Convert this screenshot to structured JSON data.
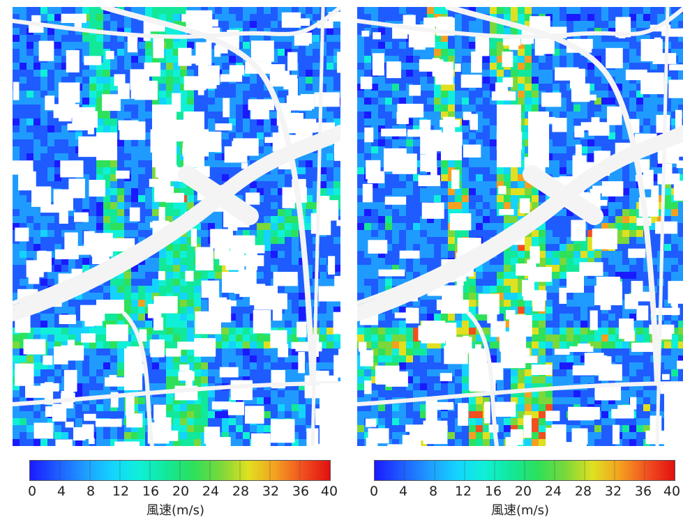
{
  "panels": [
    {
      "id": "left",
      "legend": {
        "ticks": [
          "0",
          "4",
          "8",
          "12",
          "16",
          "20",
          "24",
          "28",
          "32",
          "36",
          "40"
        ],
        "label": "風速(m/s)"
      },
      "wind_intensity": 0.35
    },
    {
      "id": "right",
      "legend": {
        "ticks": [
          "0",
          "4",
          "8",
          "12",
          "16",
          "20",
          "24",
          "28",
          "32",
          "36",
          "40"
        ],
        "label": "風速(m/s)"
      },
      "wind_intensity": 0.55
    }
  ],
  "colors": {
    "colormap": [
      "#1a1aff",
      "#1e5cff",
      "#1f9bff",
      "#14d3ff",
      "#10f0d8",
      "#12e89a",
      "#2ee05a",
      "#7ad83a",
      "#e0e020",
      "#f4a020",
      "#f05020",
      "#e01010"
    ],
    "building": "#ffffff",
    "road": "#f4f4f4"
  }
}
